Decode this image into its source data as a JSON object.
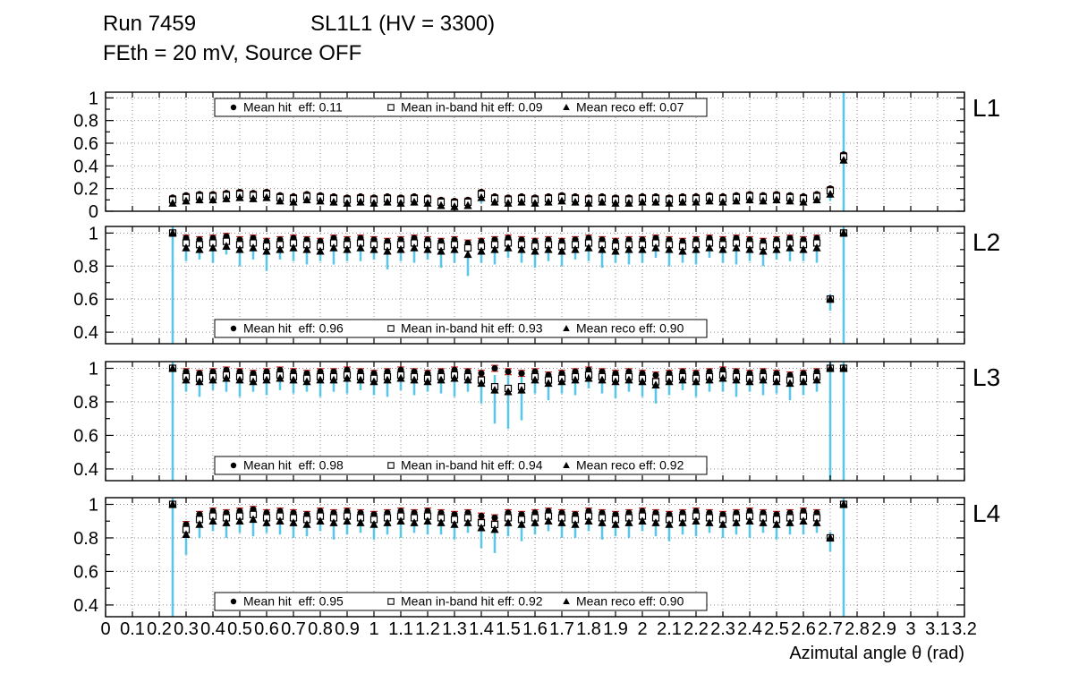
{
  "header": {
    "run": "Run 7459",
    "chamber": "SL1L1 (HV = 3300)",
    "conditions": "FEth = 20 mV, Source OFF"
  },
  "colors": {
    "marker": "#000000",
    "hit_err": "#d9251f",
    "inband_err": "#2a2ac8",
    "reco_err": "#5bc6e6",
    "grid": "#8a8a8a",
    "frame": "#000000"
  },
  "chart_data": {
    "type": "scatter",
    "xlabel": "Azimutal angle θ (rad)",
    "xlim": [
      0,
      3.2
    ],
    "xticks": [
      0,
      0.1,
      0.2,
      0.3,
      0.4,
      0.5,
      0.6,
      0.7,
      0.8,
      0.9,
      1,
      1.1,
      1.2,
      1.3,
      1.4,
      1.5,
      1.6,
      1.7,
      1.8,
      1.9,
      2,
      2.1,
      2.2,
      2.3,
      2.4,
      2.5,
      2.6,
      2.7,
      2.8,
      2.9,
      3,
      3.1,
      3.2
    ],
    "x": [
      0.25,
      0.3,
      0.35,
      0.4,
      0.45,
      0.5,
      0.55,
      0.6,
      0.65,
      0.7,
      0.75,
      0.8,
      0.85,
      0.9,
      0.95,
      1,
      1.05,
      1.1,
      1.15,
      1.2,
      1.25,
      1.3,
      1.35,
      1.4,
      1.45,
      1.5,
      1.55,
      1.6,
      1.65,
      1.7,
      1.75,
      1.8,
      1.85,
      1.9,
      1.95,
      2,
      2.05,
      2.1,
      2.15,
      2.2,
      2.25,
      2.3,
      2.35,
      2.4,
      2.45,
      2.5,
      2.55,
      2.6,
      2.65,
      2.7,
      2.75
    ],
    "panels": [
      {
        "label": "L1",
        "ylim": [
          0,
          1.05
        ],
        "yticks": [
          0,
          0.2,
          0.4,
          0.6,
          0.8,
          1
        ],
        "legend_position": "top",
        "bar_err": 0.015,
        "legend": [
          {
            "marker": "circle",
            "label": "Mean hit  eff: 0.11"
          },
          {
            "marker": "square",
            "label": "Mean in-band hit eff: 0.09"
          },
          {
            "marker": "triangle",
            "label": "Mean reco eff: 0.07"
          }
        ],
        "hit": [
          0.12,
          0.14,
          0.15,
          0.15,
          0.16,
          0.17,
          0.16,
          0.17,
          0.14,
          0.13,
          0.15,
          0.14,
          0.13,
          0.12,
          0.13,
          0.12,
          0.13,
          0.12,
          0.13,
          0.12,
          0.1,
          0.09,
          0.1,
          0.17,
          0.13,
          0.12,
          0.13,
          0.12,
          0.13,
          0.14,
          0.13,
          0.12,
          0.13,
          0.12,
          0.12,
          0.13,
          0.13,
          0.12,
          0.13,
          0.13,
          0.14,
          0.13,
          0.14,
          0.15,
          0.14,
          0.15,
          0.14,
          0.13,
          0.15,
          0.2,
          0.5
        ],
        "inband": [
          0.1,
          0.12,
          0.13,
          0.13,
          0.14,
          0.15,
          0.14,
          0.15,
          0.12,
          0.11,
          0.13,
          0.12,
          0.11,
          0.1,
          0.11,
          0.1,
          0.11,
          0.1,
          0.11,
          0.1,
          0.08,
          0.07,
          0.08,
          0.15,
          0.11,
          0.1,
          0.11,
          0.1,
          0.11,
          0.12,
          0.11,
          0.1,
          0.11,
          0.1,
          0.1,
          0.11,
          0.11,
          0.1,
          0.11,
          0.11,
          0.12,
          0.11,
          0.12,
          0.13,
          0.12,
          0.13,
          0.12,
          0.11,
          0.13,
          0.18,
          0.48
        ],
        "reco": [
          0.07,
          0.09,
          0.1,
          0.1,
          0.11,
          0.12,
          0.11,
          0.12,
          0.09,
          0.08,
          0.1,
          0.09,
          0.08,
          0.07,
          0.08,
          0.07,
          0.08,
          0.07,
          0.08,
          0.07,
          0.05,
          0.04,
          0.05,
          0.12,
          0.08,
          0.07,
          0.08,
          0.07,
          0.08,
          0.09,
          0.08,
          0.07,
          0.08,
          0.07,
          0.07,
          0.08,
          0.08,
          0.07,
          0.08,
          0.08,
          0.09,
          0.08,
          0.09,
          0.1,
          0.09,
          0.1,
          0.09,
          0.08,
          0.1,
          0.15,
          0.45
        ],
        "err": [
          0.03,
          0.03,
          0.03,
          0.03,
          0.03,
          0.03,
          0.03,
          0.03,
          0.03,
          0.03,
          0.03,
          0.03,
          0.03,
          0.03,
          0.03,
          0.03,
          0.03,
          0.03,
          0.03,
          0.03,
          0.03,
          0.03,
          0.03,
          0.05,
          0.03,
          0.03,
          0.03,
          0.03,
          0.03,
          0.03,
          0.03,
          0.03,
          0.03,
          0.03,
          0.03,
          0.03,
          0.03,
          0.03,
          0.03,
          0.03,
          0.03,
          0.03,
          0.03,
          0.03,
          0.03,
          0.03,
          0.03,
          0.03,
          0.03,
          0.06,
          0.6
        ]
      },
      {
        "label": "L2",
        "ylim": [
          0.33,
          1.04
        ],
        "yticks": [
          0.4,
          0.6,
          0.8,
          1
        ],
        "legend_position": "bottom",
        "bar_err": 0.018,
        "legend": [
          {
            "marker": "circle",
            "label": "Mean hit  eff: 0.96"
          },
          {
            "marker": "square",
            "label": "Mean in-band hit eff: 0.93"
          },
          {
            "marker": "triangle",
            "label": "Mean reco eff: 0.90"
          }
        ],
        "hit": [
          1.0,
          0.97,
          0.96,
          0.97,
          0.98,
          0.96,
          0.97,
          0.95,
          0.96,
          0.97,
          0.96,
          0.95,
          0.97,
          0.96,
          0.97,
          0.96,
          0.95,
          0.96,
          0.97,
          0.96,
          0.95,
          0.96,
          0.94,
          0.95,
          0.96,
          0.97,
          0.96,
          0.95,
          0.96,
          0.95,
          0.96,
          0.97,
          0.96,
          0.95,
          0.96,
          0.96,
          0.97,
          0.96,
          0.95,
          0.96,
          0.97,
          0.96,
          0.97,
          0.96,
          0.95,
          0.96,
          0.97,
          0.96,
          0.97,
          0.6,
          1.0
        ],
        "inband": [
          1.0,
          0.94,
          0.93,
          0.94,
          0.95,
          0.93,
          0.94,
          0.92,
          0.93,
          0.94,
          0.93,
          0.92,
          0.94,
          0.93,
          0.94,
          0.93,
          0.92,
          0.93,
          0.94,
          0.93,
          0.92,
          0.93,
          0.91,
          0.92,
          0.93,
          0.94,
          0.93,
          0.92,
          0.93,
          0.92,
          0.93,
          0.94,
          0.93,
          0.92,
          0.93,
          0.93,
          0.94,
          0.93,
          0.92,
          0.93,
          0.94,
          0.93,
          0.94,
          0.93,
          0.92,
          0.93,
          0.94,
          0.93,
          0.94,
          0.6,
          1.0
        ],
        "reco": [
          1.0,
          0.91,
          0.9,
          0.91,
          0.92,
          0.9,
          0.91,
          0.89,
          0.9,
          0.91,
          0.9,
          0.89,
          0.91,
          0.9,
          0.91,
          0.9,
          0.89,
          0.9,
          0.91,
          0.9,
          0.89,
          0.9,
          0.87,
          0.89,
          0.9,
          0.91,
          0.9,
          0.89,
          0.9,
          0.89,
          0.9,
          0.91,
          0.9,
          0.89,
          0.9,
          0.9,
          0.91,
          0.9,
          0.89,
          0.9,
          0.91,
          0.9,
          0.91,
          0.9,
          0.89,
          0.9,
          0.91,
          0.9,
          0.91,
          0.6,
          1.0
        ],
        "err": [
          0.7,
          0.08,
          0.06,
          0.09,
          0.05,
          0.1,
          0.07,
          0.12,
          0.06,
          0.08,
          0.09,
          0.06,
          0.1,
          0.07,
          0.08,
          0.06,
          0.11,
          0.07,
          0.09,
          0.06,
          0.1,
          0.08,
          0.13,
          0.07,
          0.09,
          0.06,
          0.08,
          0.1,
          0.07,
          0.09,
          0.06,
          0.08,
          0.11,
          0.07,
          0.09,
          0.08,
          0.06,
          0.1,
          0.07,
          0.09,
          0.06,
          0.08,
          0.1,
          0.07,
          0.09,
          0.06,
          0.08,
          0.07,
          0.09,
          0.07,
          0.7
        ]
      },
      {
        "label": "L3",
        "ylim": [
          0.33,
          1.04
        ],
        "yticks": [
          0.4,
          0.6,
          0.8,
          1
        ],
        "legend_position": "bottom",
        "bar_err": 0.018,
        "legend": [
          {
            "marker": "circle",
            "label": "Mean hit  eff: 0.98"
          },
          {
            "marker": "square",
            "label": "Mean in-band hit eff: 0.94"
          },
          {
            "marker": "triangle",
            "label": "Mean reco eff: 0.92"
          }
        ],
        "hit": [
          1.0,
          0.98,
          0.97,
          0.98,
          0.99,
          0.98,
          0.97,
          0.98,
          0.99,
          0.98,
          0.97,
          0.98,
          0.98,
          0.99,
          0.98,
          0.97,
          0.98,
          0.99,
          0.98,
          0.97,
          0.98,
          0.99,
          0.98,
          0.97,
          1.0,
          0.98,
          0.97,
          0.98,
          0.96,
          0.97,
          0.98,
          0.99,
          0.98,
          0.97,
          0.98,
          0.97,
          0.96,
          0.97,
          0.98,
          0.97,
          0.98,
          0.99,
          0.98,
          0.97,
          0.98,
          0.97,
          0.96,
          0.97,
          0.98,
          1.0,
          1.0
        ],
        "inband": [
          1.0,
          0.95,
          0.94,
          0.95,
          0.96,
          0.95,
          0.94,
          0.95,
          0.96,
          0.95,
          0.94,
          0.95,
          0.95,
          0.96,
          0.95,
          0.94,
          0.95,
          0.96,
          0.95,
          0.94,
          0.95,
          0.96,
          0.95,
          0.93,
          0.89,
          0.88,
          0.89,
          0.95,
          0.93,
          0.94,
          0.95,
          0.96,
          0.95,
          0.94,
          0.95,
          0.94,
          0.92,
          0.94,
          0.95,
          0.94,
          0.95,
          0.96,
          0.95,
          0.94,
          0.95,
          0.94,
          0.93,
          0.94,
          0.95,
          1.0,
          1.0
        ],
        "reco": [
          1.0,
          0.93,
          0.92,
          0.93,
          0.94,
          0.93,
          0.92,
          0.93,
          0.94,
          0.93,
          0.92,
          0.93,
          0.93,
          0.94,
          0.93,
          0.92,
          0.93,
          0.94,
          0.93,
          0.92,
          0.93,
          0.94,
          0.93,
          0.91,
          0.87,
          0.86,
          0.87,
          0.93,
          0.91,
          0.92,
          0.93,
          0.94,
          0.93,
          0.92,
          0.93,
          0.92,
          0.9,
          0.92,
          0.93,
          0.92,
          0.93,
          0.94,
          0.93,
          0.92,
          0.93,
          0.92,
          0.91,
          0.92,
          0.93,
          1.0,
          1.0
        ],
        "err": [
          0.7,
          0.07,
          0.09,
          0.06,
          0.08,
          0.1,
          0.06,
          0.09,
          0.07,
          0.08,
          0.06,
          0.1,
          0.07,
          0.09,
          0.06,
          0.08,
          0.1,
          0.07,
          0.09,
          0.06,
          0.08,
          0.11,
          0.07,
          0.12,
          0.2,
          0.22,
          0.18,
          0.08,
          0.1,
          0.07,
          0.09,
          0.06,
          0.08,
          0.1,
          0.07,
          0.09,
          0.11,
          0.08,
          0.06,
          0.09,
          0.07,
          0.08,
          0.1,
          0.06,
          0.09,
          0.07,
          0.1,
          0.08,
          0.07,
          0.7,
          0.7
        ]
      },
      {
        "label": "L4",
        "ylim": [
          0.33,
          1.04
        ],
        "yticks": [
          0.4,
          0.6,
          0.8,
          1
        ],
        "legend_position": "bottom",
        "bar_err": 0.018,
        "legend": [
          {
            "marker": "circle",
            "label": "Mean hit  eff: 0.95"
          },
          {
            "marker": "square",
            "label": "Mean in-band hit eff: 0.92"
          },
          {
            "marker": "triangle",
            "label": "Mean reco eff: 0.90"
          }
        ],
        "hit": [
          1.0,
          0.88,
          0.94,
          0.96,
          0.95,
          0.96,
          0.97,
          0.95,
          0.96,
          0.95,
          0.94,
          0.96,
          0.95,
          0.96,
          0.95,
          0.94,
          0.95,
          0.96,
          0.95,
          0.96,
          0.95,
          0.94,
          0.95,
          0.93,
          0.92,
          0.95,
          0.94,
          0.95,
          0.96,
          0.95,
          0.94,
          0.96,
          0.95,
          0.94,
          0.95,
          0.96,
          0.95,
          0.94,
          0.95,
          0.96,
          0.95,
          0.94,
          0.95,
          0.96,
          0.95,
          0.94,
          0.95,
          0.96,
          0.95,
          0.8,
          1.0
        ],
        "inband": [
          1.0,
          0.85,
          0.91,
          0.93,
          0.92,
          0.93,
          0.94,
          0.92,
          0.93,
          0.92,
          0.91,
          0.93,
          0.92,
          0.93,
          0.92,
          0.91,
          0.92,
          0.93,
          0.92,
          0.93,
          0.92,
          0.91,
          0.92,
          0.89,
          0.88,
          0.92,
          0.91,
          0.92,
          0.93,
          0.92,
          0.91,
          0.93,
          0.92,
          0.91,
          0.92,
          0.93,
          0.92,
          0.91,
          0.92,
          0.93,
          0.92,
          0.91,
          0.92,
          0.93,
          0.92,
          0.91,
          0.92,
          0.93,
          0.92,
          0.8,
          1.0
        ],
        "reco": [
          1.0,
          0.82,
          0.88,
          0.9,
          0.89,
          0.9,
          0.91,
          0.89,
          0.9,
          0.89,
          0.88,
          0.9,
          0.89,
          0.9,
          0.89,
          0.88,
          0.89,
          0.9,
          0.89,
          0.9,
          0.89,
          0.88,
          0.89,
          0.86,
          0.85,
          0.89,
          0.88,
          0.89,
          0.9,
          0.89,
          0.88,
          0.9,
          0.89,
          0.88,
          0.89,
          0.9,
          0.89,
          0.88,
          0.89,
          0.9,
          0.89,
          0.88,
          0.89,
          0.9,
          0.89,
          0.88,
          0.89,
          0.9,
          0.89,
          0.8,
          1.0
        ],
        "err": [
          0.7,
          0.12,
          0.08,
          0.06,
          0.09,
          0.07,
          0.1,
          0.06,
          0.08,
          0.09,
          0.07,
          0.06,
          0.1,
          0.08,
          0.06,
          0.09,
          0.07,
          0.1,
          0.06,
          0.08,
          0.07,
          0.09,
          0.06,
          0.12,
          0.14,
          0.08,
          0.1,
          0.07,
          0.06,
          0.09,
          0.08,
          0.06,
          0.1,
          0.07,
          0.09,
          0.06,
          0.08,
          0.1,
          0.07,
          0.09,
          0.06,
          0.08,
          0.07,
          0.1,
          0.06,
          0.09,
          0.07,
          0.08,
          0.06,
          0.08,
          0.7
        ]
      }
    ]
  }
}
